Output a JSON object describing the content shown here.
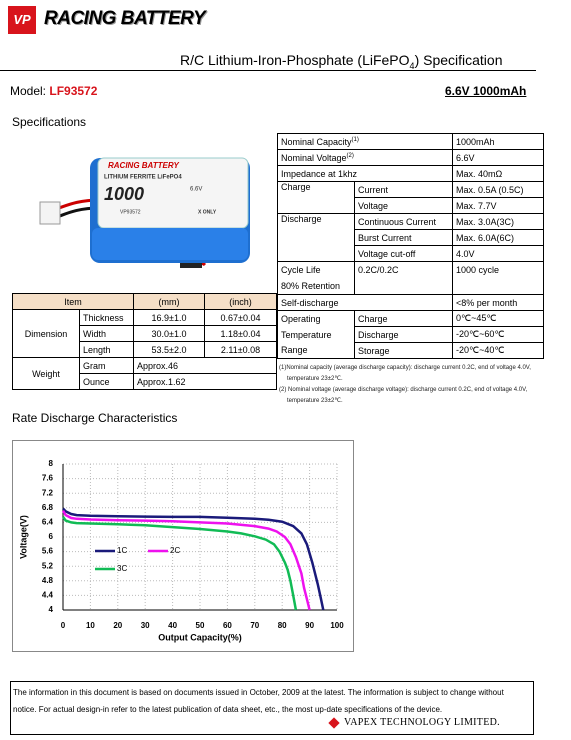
{
  "header": {
    "logo_mark": "VP",
    "logo_text": "RACING BATTERY",
    "title_main": "R/C  Lithium-Iron-Phosphate  (LiFePO",
    "title_sub": "4",
    "title_end": ")  Specification"
  },
  "model": {
    "label": "Model: ",
    "value": "LF93572",
    "rating": "6.6V 1000mAh"
  },
  "specifications_heading": "Specifications",
  "battery_image": {
    "brand": "RACING BATTERY",
    "chemistry": "LITHIUM FERRITE  LiFePO4",
    "capacity": "1000",
    "voltage": "6.6V",
    "model": "VP93572",
    "note": "X ONLY"
  },
  "dimensions_table": {
    "header": [
      "Item",
      "(mm)",
      "(inch)"
    ],
    "rows": [
      [
        "Dimension",
        "Thickness",
        "16.9±1.0",
        "0.67±0.04"
      ],
      [
        "",
        "Width",
        "30.0±1.0",
        "1.18±0.04"
      ],
      [
        "",
        "Length",
        "53.5±2.0",
        "2.11±0.08"
      ],
      [
        "Weight",
        "Gram",
        "Approx.46"
      ],
      [
        "",
        "Ounce",
        "Approx.1.62"
      ]
    ]
  },
  "spec_table": {
    "rows": [
      {
        "label": "Nominal Capacity",
        "sup": "(1)",
        "value": "1000mAh"
      },
      {
        "label": "Nominal Voltage",
        "sup": "(2)",
        "value": "6.6V"
      },
      {
        "label": "Impedance at 1khz",
        "value": "Max. 40mΩ"
      },
      {
        "label": "Charge",
        "sub": "Current",
        "value": "Max. 0.5A (0.5C)"
      },
      {
        "sub": "Voltage",
        "value": "Max. 7.7V"
      },
      {
        "label": "Discharge",
        "sub": "Continuous Current",
        "value": "Max. 3.0A(3C)"
      },
      {
        "sub": "Burst Current",
        "value": "Max. 6.0A(6C)"
      },
      {
        "sub": "Voltage cut-off",
        "value": "4.0V"
      },
      {
        "label": "Cycle Life",
        "label2": "80% Retention",
        "sub": "0.2C/0.2C",
        "value": "1000 cycle"
      },
      {
        "label": "Self-discharge",
        "value": "<8% per month"
      },
      {
        "label": "Operating",
        "sub": "Charge",
        "value": "0℃~45℃"
      },
      {
        "label": "Temperature",
        "sub": "Discharge",
        "value": "-20℃~60℃"
      },
      {
        "label": "Range",
        "sub": "Storage",
        "value": "-20℃~40℃"
      }
    ]
  },
  "notes": [
    "(1)Nominal capacity (average discharge capacity): discharge current 0.2C, end of voltage 4.0V, temperature 23±2℃.",
    "(2) Nominal voltage (average discharge voltage): discharge current 0.2C, end of voltage 4.0V, temperature 23±2℃."
  ],
  "chart_data": {
    "type": "line",
    "title": "Rate Discharge Characteristics",
    "xlabel": "Output Capacity(%)",
    "ylabel": "Voltage(V)",
    "xlim": [
      0,
      100
    ],
    "xticks": [
      0,
      10,
      20,
      30,
      40,
      50,
      60,
      70,
      80,
      90,
      100
    ],
    "ylim": [
      4,
      8
    ],
    "yticks": [
      4,
      4.4,
      4.8,
      5.2,
      5.6,
      6,
      6.4,
      6.8,
      7.2,
      7.6,
      8
    ],
    "grid": true,
    "legend": "center-left",
    "series": [
      {
        "name": "1C",
        "color": "#1a1a7a",
        "x": [
          0,
          1,
          3,
          5,
          10,
          20,
          30,
          40,
          50,
          60,
          70,
          75,
          80,
          84,
          87,
          89,
          91,
          93,
          94,
          95
        ],
        "values": [
          6.78,
          6.7,
          6.63,
          6.6,
          6.58,
          6.57,
          6.56,
          6.55,
          6.55,
          6.53,
          6.5,
          6.47,
          6.42,
          6.3,
          6.1,
          5.8,
          5.3,
          4.7,
          4.35,
          4.0
        ]
      },
      {
        "name": "2C",
        "color": "#ee11ee",
        "x": [
          0,
          1,
          3,
          5,
          10,
          20,
          30,
          40,
          50,
          60,
          70,
          75,
          78,
          81,
          83,
          85,
          87,
          88,
          89,
          90
        ],
        "values": [
          6.72,
          6.6,
          6.52,
          6.5,
          6.48,
          6.46,
          6.45,
          6.43,
          6.4,
          6.37,
          6.3,
          6.23,
          6.15,
          6.0,
          5.8,
          5.45,
          5.0,
          4.6,
          4.3,
          4.0
        ]
      },
      {
        "name": "3C",
        "color": "#11bb55",
        "x": [
          0,
          1,
          3,
          5,
          10,
          20,
          30,
          40,
          50,
          60,
          65,
          70,
          74,
          77,
          79,
          81,
          82,
          83,
          84,
          85
        ],
        "values": [
          6.55,
          6.45,
          6.4,
          6.38,
          6.37,
          6.35,
          6.32,
          6.27,
          6.22,
          6.15,
          6.1,
          6.02,
          5.93,
          5.8,
          5.6,
          5.3,
          5.1,
          4.8,
          4.4,
          4.0
        ]
      }
    ]
  },
  "footer": {
    "text": "The information in this document is based on documents issued in October, 2009 at the latest. The information is subject to change without notice. For actual design-in refer to the latest publication of data sheet, etc., the most up-date specifications of the device.",
    "company": "VAPEX TECHNOLOGY LIMITED."
  }
}
